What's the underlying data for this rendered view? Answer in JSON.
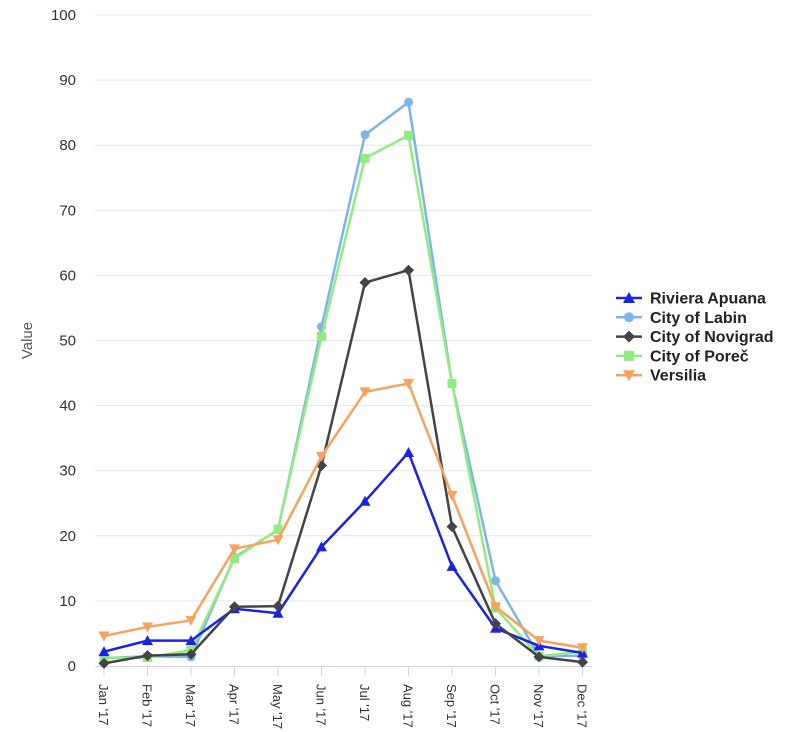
{
  "chart_data": {
    "type": "line",
    "title": "",
    "xlabel": "",
    "ylabel": "Value",
    "ylim": [
      0,
      100
    ],
    "yticks": [
      0,
      10,
      20,
      30,
      40,
      50,
      60,
      70,
      80,
      90,
      100
    ],
    "grid": true,
    "legend_position": "right",
    "categories": [
      "Jan '17",
      "Feb '17",
      "Mar '17",
      "Apr '17",
      "May '17",
      "Jun '17",
      "Jul '17",
      "Aug '17",
      "Sep '17",
      "Oct '17",
      "Nov '17",
      "Dec '17"
    ],
    "series": [
      {
        "name": "Riviera Apuana",
        "color": "#1a22e6",
        "marker": "triangle",
        "values": [
          2.2,
          3.9,
          3.9,
          8.8,
          8.1,
          18.3,
          25.3,
          32.8,
          15.3,
          5.8,
          3.1,
          2.0
        ]
      },
      {
        "name": "City of Labin",
        "color": "#7cb5ec",
        "marker": "circle",
        "values": [
          1.2,
          1.5,
          1.4,
          16.7,
          20.9,
          52.1,
          81.6,
          86.6,
          43.4,
          13.1,
          1.5,
          1.6
        ]
      },
      {
        "name": "City of Novigrad",
        "color": "#434348",
        "marker": "diamond",
        "values": [
          0.4,
          1.6,
          1.8,
          9.1,
          9.2,
          30.8,
          58.9,
          60.8,
          21.4,
          6.5,
          1.4,
          0.6
        ]
      },
      {
        "name": "City of Poreč",
        "color": "#90ed7d",
        "marker": "square",
        "values": [
          1.2,
          1.3,
          2.4,
          16.5,
          21.0,
          50.6,
          78.0,
          81.5,
          43.4,
          8.9,
          1.5,
          2.2
        ]
      },
      {
        "name": "Versilia",
        "color": "#f7a35c",
        "marker": "triangle-down",
        "values": [
          4.6,
          6.0,
          7.0,
          18.0,
          19.4,
          32.2,
          42.1,
          43.4,
          26.2,
          9.1,
          3.9,
          2.8
        ]
      }
    ]
  }
}
